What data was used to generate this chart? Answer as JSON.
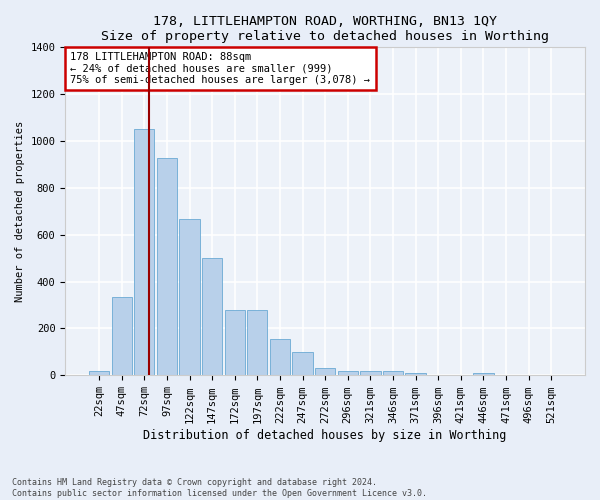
{
  "title": "178, LITTLEHAMPTON ROAD, WORTHING, BN13 1QY",
  "subtitle": "Size of property relative to detached houses in Worthing",
  "xlabel": "Distribution of detached houses by size in Worthing",
  "ylabel": "Number of detached properties",
  "categories": [
    "22sqm",
    "47sqm",
    "72sqm",
    "97sqm",
    "122sqm",
    "147sqm",
    "172sqm",
    "197sqm",
    "222sqm",
    "247sqm",
    "272sqm",
    "296sqm",
    "321sqm",
    "346sqm",
    "371sqm",
    "396sqm",
    "421sqm",
    "446sqm",
    "471sqm",
    "496sqm",
    "521sqm"
  ],
  "values": [
    18,
    335,
    1050,
    925,
    665,
    500,
    280,
    280,
    155,
    100,
    30,
    20,
    18,
    18,
    10,
    0,
    0,
    10,
    0,
    0,
    0
  ],
  "bar_color": "#b8d0ea",
  "bar_edge_color": "#6aaad4",
  "vline_color": "#990000",
  "annotation_text": "178 LITTLEHAMPTON ROAD: 88sqm\n← 24% of detached houses are smaller (999)\n75% of semi-detached houses are larger (3,078) →",
  "annotation_box_color": "white",
  "annotation_box_edge": "#cc0000",
  "ylim": [
    0,
    1400
  ],
  "yticks": [
    0,
    200,
    400,
    600,
    800,
    1000,
    1200,
    1400
  ],
  "footer": "Contains HM Land Registry data © Crown copyright and database right 2024.\nContains public sector information licensed under the Open Government Licence v3.0.",
  "bg_color": "#e8eef8",
  "plot_bg_color": "#edf2f9",
  "grid_color": "white",
  "title_fontsize": 9.5,
  "subtitle_fontsize": 8.5,
  "xlabel_fontsize": 8.5,
  "ylabel_fontsize": 7.5,
  "tick_fontsize": 7.5,
  "annotation_fontsize": 7.5,
  "footer_fontsize": 6.0
}
